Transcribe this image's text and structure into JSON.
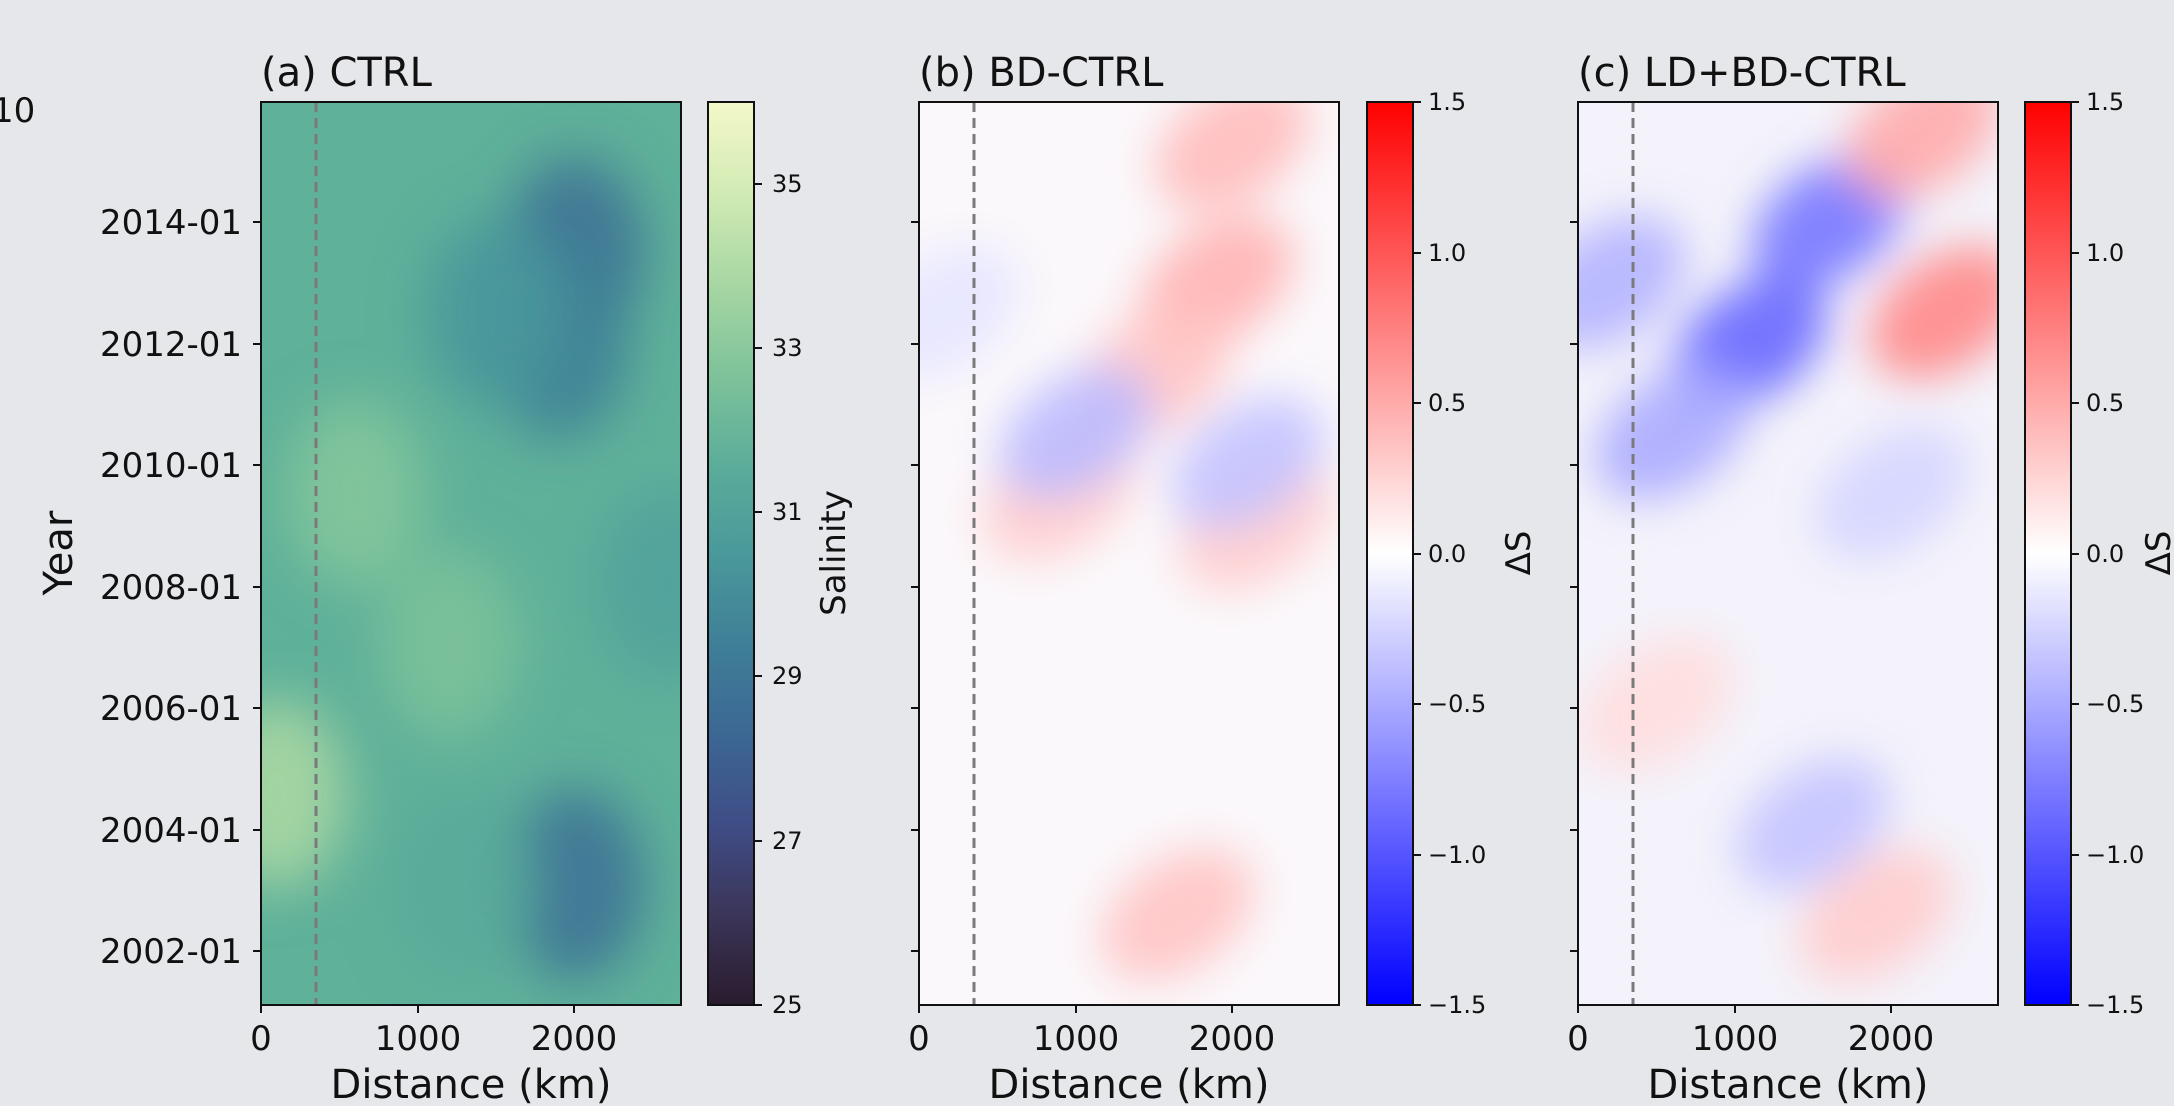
{
  "figure": {
    "stray_label_left": "10",
    "ylabel": "Year",
    "year_ticks": [
      "2002-01",
      "2004-01",
      "2006-01",
      "2008-01",
      "2010-01",
      "2012-01",
      "2014-01"
    ]
  },
  "colors": {
    "background": "#e6e7eb",
    "dashed_line": "#7a7a7a",
    "salinity_ramp": [
      "#2a1c2e",
      "#3b3559",
      "#3f4d86",
      "#3c6794",
      "#3f7f97",
      "#4a999b",
      "#5cad9a",
      "#7fc39a",
      "#a8d7a3",
      "#d2ebb4",
      "#f4f8c9"
    ],
    "diff_ramp": [
      "#0000ff",
      "#ffffff",
      "#ff0000"
    ]
  },
  "chart_data": [
    {
      "type": "heatmap",
      "title": "(a) CTRL",
      "xlabel": "Distance (km)",
      "ylabel": "Year",
      "xlim": [
        0,
        2680
      ],
      "ylim": [
        "2001-01",
        "2016-01"
      ],
      "xticks": [
        0,
        1000,
        2000
      ],
      "yticks": [
        "2002-01",
        "2004-01",
        "2006-01",
        "2008-01",
        "2010-01",
        "2012-01",
        "2014-01"
      ],
      "dashed_vertical_x": 350,
      "colorbar": {
        "label": "Salinity",
        "range": [
          25,
          36
        ],
        "ticks": [
          25,
          27,
          29,
          31,
          33,
          35
        ]
      },
      "features": [
        {
          "x": 2000,
          "y": 2013.5,
          "value": 28.8
        },
        {
          "x": 1900,
          "y": 2012.0,
          "value": 29.4
        },
        {
          "x": 2000,
          "y": 2003.0,
          "value": 28.9
        },
        {
          "x": 1500,
          "y": 2012.5,
          "value": 30.4
        },
        {
          "x": 1200,
          "y": 2007.0,
          "value": 32.6
        },
        {
          "x": 600,
          "y": 2009.5,
          "value": 32.8
        },
        {
          "x": 100,
          "y": 2004.5,
          "value": 33.8
        },
        {
          "x": 1300,
          "y": 2003.0,
          "value": 31.5
        },
        {
          "x": 2600,
          "y": 2008.0,
          "value": 31.0
        }
      ],
      "value_range_note": "background ~32.3"
    },
    {
      "type": "heatmap",
      "title": "(b) BD-CTRL",
      "xlabel": "Distance (km)",
      "xlim": [
        0,
        2680
      ],
      "ylim": [
        "2001-01",
        "2016-01"
      ],
      "xticks": [
        0,
        1000,
        2000
      ],
      "dashed_vertical_x": 350,
      "colorbar": {
        "label": "ΔS",
        "range": [
          -1.5,
          1.5
        ],
        "ticks": [
          "1.5",
          "1.0",
          "0.5",
          "0.0",
          "−0.5",
          "−1.0",
          "−1.5"
        ]
      },
      "features": [
        {
          "x": 1900,
          "y": 2013.0,
          "value": 0.45
        },
        {
          "x": 2000,
          "y": 2015.3,
          "value": 0.4
        },
        {
          "x": 1500,
          "y": 2011.5,
          "value": 0.35
        },
        {
          "x": 1650,
          "y": 2002.5,
          "value": 0.35
        },
        {
          "x": 2150,
          "y": 2009.0,
          "value": 0.3
        },
        {
          "x": 900,
          "y": 2009.5,
          "value": 0.3
        },
        {
          "x": 1000,
          "y": 2010.5,
          "value": -0.4
        },
        {
          "x": 2100,
          "y": 2010.0,
          "value": -0.35
        },
        {
          "x": 150,
          "y": 2012.5,
          "value": -0.15
        }
      ]
    },
    {
      "type": "heatmap",
      "title": "(c) LD+BD-CTRL",
      "xlabel": "Distance (km)",
      "xlim": [
        0,
        2680
      ],
      "ylim": [
        "2001-01",
        "2016-01"
      ],
      "xticks": [
        0,
        1000,
        2000
      ],
      "dashed_vertical_x": 350,
      "colorbar": {
        "label": "ΔS",
        "range": [
          -1.5,
          1.5
        ],
        "ticks": [
          "1.5",
          "1.0",
          "0.5",
          "0.0",
          "−0.5",
          "−1.0",
          "−1.5"
        ]
      },
      "features": [
        {
          "x": 1600,
          "y": 2014.0,
          "value": -0.8
        },
        {
          "x": 1100,
          "y": 2012.0,
          "value": -0.9
        },
        {
          "x": 600,
          "y": 2010.5,
          "value": -0.5
        },
        {
          "x": 200,
          "y": 2013.0,
          "value": -0.45
        },
        {
          "x": 1500,
          "y": 2004.0,
          "value": -0.35
        },
        {
          "x": 2000,
          "y": 2009.5,
          "value": -0.25
        },
        {
          "x": 2350,
          "y": 2012.5,
          "value": 0.7
        },
        {
          "x": 2200,
          "y": 2015.5,
          "value": 0.5
        },
        {
          "x": 1900,
          "y": 2002.5,
          "value": 0.3
        },
        {
          "x": 500,
          "y": 2006.0,
          "value": 0.2
        }
      ]
    }
  ]
}
